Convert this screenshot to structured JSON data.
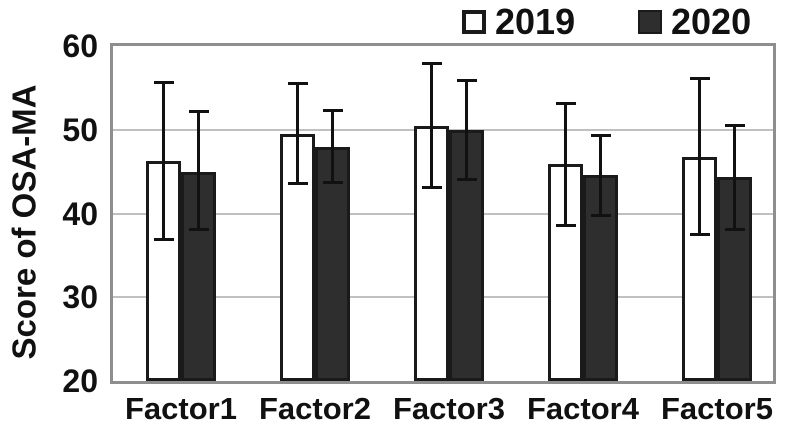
{
  "chart_data": {
    "type": "bar",
    "title": "",
    "ylabel": "Score of OSA-MA",
    "xlabel": "",
    "categories": [
      "Factor1",
      "Factor2",
      "Factor3",
      "Factor4",
      "Factor5"
    ],
    "series": [
      {
        "name": "2019",
        "fill": "#ffffff",
        "values": [
          46.3,
          49.5,
          50.5,
          45.9,
          46.8
        ],
        "error_low": [
          36.8,
          43.5,
          43.0,
          38.5,
          37.4
        ],
        "error_high": [
          55.7,
          55.6,
          58.0,
          53.2,
          56.2
        ]
      },
      {
        "name": "2020",
        "fill": "#2e2e2e",
        "values": [
          45.0,
          48.0,
          50.0,
          44.6,
          44.3
        ],
        "error_low": [
          38.0,
          43.6,
          44.0,
          39.7,
          38.0
        ],
        "error_high": [
          52.2,
          52.3,
          56.0,
          49.4,
          50.6
        ]
      }
    ],
    "ylim": [
      20,
      60
    ],
    "yticks": [
      20,
      30,
      40,
      50,
      60
    ],
    "grid": true,
    "legend_position": "top-right",
    "error_bars": true,
    "colors": {
      "bar_border": "#1a1a1a",
      "error_bar": "#111111",
      "plot_border": "#8e8e8e",
      "gridline": "#c0c0c0",
      "text": "#111111"
    }
  }
}
